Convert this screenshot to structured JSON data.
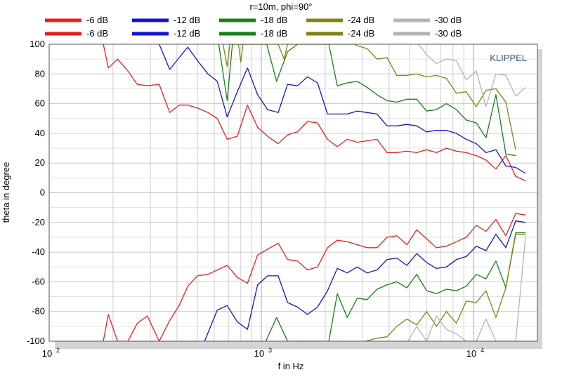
{
  "chart_data": {
    "type": "line",
    "title": "r=10m, phi=90°",
    "xlabel": "f in Hz",
    "ylabel": "theta in degree",
    "watermark": "KLIPPEL",
    "x_scale": "log",
    "xlim": [
      100,
      20000
    ],
    "ylim": [
      -100,
      100
    ],
    "x_ticks": [
      {
        "value": 100,
        "base": "10",
        "exp": "2"
      },
      {
        "value": 1000,
        "base": "10",
        "exp": "3"
      },
      {
        "value": 10000,
        "base": "10",
        "exp": "4"
      }
    ],
    "y_ticks": [
      "100",
      "80",
      "60",
      "40",
      "20",
      "0",
      "-20",
      "-40",
      "-60",
      "-80",
      "-100"
    ],
    "legend": [
      {
        "label": "-6 dB",
        "color": "#e8201c"
      },
      {
        "label": "-6 dB",
        "color": "#e8201c"
      },
      {
        "label": "-12 dB",
        "color": "#1414d2"
      },
      {
        "label": "-12 dB",
        "color": "#1414d2"
      },
      {
        "label": "-18 dB",
        "color": "#148214"
      },
      {
        "label": "-18 dB",
        "color": "#148214"
      },
      {
        "label": "-24 dB",
        "color": "#828214"
      },
      {
        "label": "-24 dB",
        "color": "#828214"
      },
      {
        "label": "-30 dB",
        "color": "#b4b4b4"
      },
      {
        "label": "-30 dB",
        "color": "#b4b4b4"
      }
    ],
    "series": [
      {
        "name": "-6 dB upper",
        "color": "#e8201c",
        "points": [
          [
            180,
            100
          ],
          [
            190,
            84
          ],
          [
            210,
            90
          ],
          [
            235,
            82
          ],
          [
            260,
            73
          ],
          [
            290,
            72
          ],
          [
            330,
            73
          ],
          [
            370,
            54
          ],
          [
            410,
            59
          ],
          [
            450,
            59
          ],
          [
            500,
            57
          ],
          [
            560,
            54
          ],
          [
            620,
            50
          ],
          [
            690,
            36
          ],
          [
            770,
            38
          ],
          [
            860,
            59
          ],
          [
            960,
            44
          ],
          [
            1070,
            38
          ],
          [
            1200,
            33
          ],
          [
            1330,
            39
          ],
          [
            1480,
            41
          ],
          [
            1650,
            48
          ],
          [
            1840,
            47
          ],
          [
            2050,
            36
          ],
          [
            2280,
            31
          ],
          [
            2540,
            36
          ],
          [
            2830,
            34
          ],
          [
            3150,
            35
          ],
          [
            3510,
            36
          ],
          [
            3910,
            27
          ],
          [
            4350,
            27
          ],
          [
            4850,
            28
          ],
          [
            5400,
            27
          ],
          [
            6010,
            29
          ],
          [
            6690,
            27
          ],
          [
            7450,
            30
          ],
          [
            8300,
            28
          ],
          [
            9240,
            27
          ],
          [
            10300,
            25
          ],
          [
            11450,
            22
          ],
          [
            12750,
            16
          ],
          [
            14200,
            25
          ],
          [
            15800,
            11
          ],
          [
            17600,
            8
          ]
        ]
      },
      {
        "name": "-6 dB lower",
        "color": "#e8201c",
        "points": [
          [
            180,
            -100
          ],
          [
            190,
            -82
          ],
          [
            210,
            -100
          ],
          [
            235,
            -100
          ],
          [
            260,
            -88
          ],
          [
            290,
            -83
          ],
          [
            330,
            -100
          ],
          [
            370,
            -86
          ],
          [
            410,
            -76
          ],
          [
            450,
            -63
          ],
          [
            500,
            -56
          ],
          [
            560,
            -55
          ],
          [
            620,
            -52
          ],
          [
            690,
            -49
          ],
          [
            770,
            -57
          ],
          [
            860,
            -61
          ],
          [
            960,
            -42
          ],
          [
            1070,
            -38
          ],
          [
            1200,
            -34
          ],
          [
            1330,
            -45
          ],
          [
            1480,
            -46
          ],
          [
            1650,
            -52
          ],
          [
            1840,
            -50
          ],
          [
            2050,
            -37
          ],
          [
            2280,
            -32
          ],
          [
            2540,
            -33
          ],
          [
            2830,
            -35
          ],
          [
            3150,
            -37
          ],
          [
            3510,
            -37
          ],
          [
            3910,
            -30
          ],
          [
            4350,
            -29
          ],
          [
            4850,
            -35
          ],
          [
            5400,
            -25
          ],
          [
            6010,
            -31
          ],
          [
            6690,
            -37
          ],
          [
            7450,
            -36
          ],
          [
            8300,
            -33
          ],
          [
            9240,
            -30
          ],
          [
            10300,
            -22
          ],
          [
            11450,
            -26
          ],
          [
            12750,
            -18
          ],
          [
            14200,
            -29
          ],
          [
            15800,
            -14
          ],
          [
            17600,
            -15
          ]
        ]
      },
      {
        "name": "-12 dB upper",
        "color": "#1414d2",
        "points": [
          [
            330,
            100
          ],
          [
            370,
            83
          ],
          [
            410,
            91
          ],
          [
            450,
            98
          ],
          [
            500,
            89
          ],
          [
            560,
            80
          ],
          [
            620,
            75
          ],
          [
            690,
            51
          ],
          [
            770,
            68
          ],
          [
            860,
            84
          ],
          [
            960,
            66
          ],
          [
            1070,
            56
          ],
          [
            1200,
            54
          ],
          [
            1330,
            73
          ],
          [
            1480,
            72
          ],
          [
            1650,
            78
          ],
          [
            1840,
            74
          ],
          [
            2050,
            53
          ],
          [
            2280,
            53
          ],
          [
            2540,
            53
          ],
          [
            2830,
            55
          ],
          [
            3150,
            54
          ],
          [
            3510,
            53
          ],
          [
            3910,
            45
          ],
          [
            4350,
            45
          ],
          [
            4850,
            46
          ],
          [
            5400,
            45
          ],
          [
            6010,
            41
          ],
          [
            6690,
            42
          ],
          [
            7450,
            42
          ],
          [
            8300,
            40
          ],
          [
            9240,
            36
          ],
          [
            10300,
            33
          ],
          [
            11450,
            27
          ],
          [
            12750,
            29
          ],
          [
            14200,
            18
          ],
          [
            15800,
            17
          ],
          [
            17600,
            13
          ]
        ]
      },
      {
        "name": "-12 dB lower",
        "color": "#1414d2",
        "points": [
          [
            540,
            -100
          ],
          [
            620,
            -79
          ],
          [
            690,
            -76
          ],
          [
            770,
            -87
          ],
          [
            860,
            -92
          ],
          [
            960,
            -62
          ],
          [
            1070,
            -56
          ],
          [
            1200,
            -56
          ],
          [
            1330,
            -74
          ],
          [
            1480,
            -77
          ],
          [
            1650,
            -82
          ],
          [
            1840,
            -77
          ],
          [
            2050,
            -66
          ],
          [
            2280,
            -51
          ],
          [
            2540,
            -54
          ],
          [
            2830,
            -50
          ],
          [
            3150,
            -54
          ],
          [
            3510,
            -52
          ],
          [
            3910,
            -45
          ],
          [
            4350,
            -44
          ],
          [
            4850,
            -49
          ],
          [
            5400,
            -41
          ],
          [
            6010,
            -47
          ],
          [
            6690,
            -51
          ],
          [
            7450,
            -50
          ],
          [
            8300,
            -45
          ],
          [
            9240,
            -43
          ],
          [
            10300,
            -36
          ],
          [
            11450,
            -39
          ],
          [
            12750,
            -28
          ],
          [
            14200,
            -37
          ],
          [
            15800,
            -19
          ],
          [
            17600,
            -20
          ]
        ]
      },
      {
        "name": "-18 dB upper",
        "color": "#148214",
        "points": [
          [
            630,
            100
          ],
          [
            690,
            62
          ],
          [
            730,
            100
          ],
          [
            1060,
            100
          ],
          [
            1180,
            75
          ],
          [
            1330,
            95
          ],
          [
            1480,
            100
          ],
          [
            2080,
            100
          ],
          [
            2280,
            72
          ],
          [
            2540,
            74
          ],
          [
            2830,
            75
          ],
          [
            3150,
            71
          ],
          [
            3510,
            66
          ],
          [
            3910,
            62
          ],
          [
            4350,
            61
          ],
          [
            4850,
            63
          ],
          [
            5400,
            63
          ],
          [
            6010,
            55
          ],
          [
            6690,
            56
          ],
          [
            7450,
            60
          ],
          [
            8300,
            56
          ],
          [
            9240,
            49
          ],
          [
            10300,
            47
          ],
          [
            11450,
            37
          ],
          [
            12750,
            66
          ],
          [
            14200,
            26
          ],
          [
            15800,
            25
          ]
        ]
      },
      {
        "name": "-18 dB lower",
        "color": "#148214",
        "points": [
          [
            1050,
            -100
          ],
          [
            1180,
            -84
          ],
          [
            1330,
            -100
          ],
          [
            2080,
            -100
          ],
          [
            2280,
            -68
          ],
          [
            2540,
            -84
          ],
          [
            2830,
            -71
          ],
          [
            3150,
            -72
          ],
          [
            3510,
            -65
          ],
          [
            3910,
            -62
          ],
          [
            4350,
            -60
          ],
          [
            4850,
            -64
          ],
          [
            5400,
            -55
          ],
          [
            6010,
            -66
          ],
          [
            6690,
            -68
          ],
          [
            7450,
            -65
          ],
          [
            8300,
            -66
          ],
          [
            9240,
            -63
          ],
          [
            10300,
            -55
          ],
          [
            11450,
            -58
          ],
          [
            12750,
            -46
          ],
          [
            14200,
            -64
          ],
          [
            15800,
            -27
          ],
          [
            17600,
            -27
          ]
        ]
      },
      {
        "name": "-24 dB upper",
        "color": "#828214",
        "points": [
          [
            660,
            100
          ],
          [
            690,
            85
          ],
          [
            710,
            100
          ],
          [
            780,
            100
          ],
          [
            800,
            88
          ],
          [
            820,
            100
          ],
          [
            1200,
            100
          ],
          [
            1280,
            90
          ],
          [
            1330,
            100
          ],
          [
            2750,
            100
          ],
          [
            2830,
            99
          ],
          [
            3150,
            97
          ],
          [
            3510,
            90
          ],
          [
            3910,
            91
          ],
          [
            4350,
            79
          ],
          [
            4850,
            79
          ],
          [
            5400,
            80
          ],
          [
            6010,
            78
          ],
          [
            6690,
            79
          ],
          [
            7450,
            77
          ],
          [
            8300,
            67
          ],
          [
            9240,
            68
          ],
          [
            10300,
            58
          ],
          [
            11450,
            69
          ],
          [
            12750,
            70
          ],
          [
            14200,
            61
          ],
          [
            15800,
            29
          ]
        ]
      },
      {
        "name": "-24 dB lower",
        "color": "#828214",
        "points": [
          [
            3100,
            -100
          ],
          [
            3510,
            -98
          ],
          [
            3910,
            -97
          ],
          [
            4350,
            -90
          ],
          [
            4850,
            -85
          ],
          [
            5400,
            -89
          ],
          [
            6010,
            -80
          ],
          [
            6690,
            -90
          ],
          [
            7450,
            -80
          ],
          [
            8300,
            -88
          ],
          [
            9240,
            -73
          ],
          [
            10300,
            -74
          ],
          [
            11450,
            -66
          ],
          [
            12750,
            -84
          ],
          [
            14200,
            -64
          ],
          [
            15800,
            -28
          ],
          [
            17600,
            -28
          ]
        ]
      },
      {
        "name": "-30 dB upper",
        "color": "#b4b4b4",
        "points": [
          [
            5500,
            100
          ],
          [
            6010,
            93
          ],
          [
            6690,
            87
          ],
          [
            7450,
            90
          ],
          [
            8300,
            89
          ],
          [
            9240,
            76
          ],
          [
            10300,
            82
          ],
          [
            11450,
            58
          ],
          [
            12750,
            80
          ],
          [
            14200,
            79
          ],
          [
            15800,
            65
          ],
          [
            17600,
            71
          ]
        ]
      },
      {
        "name": "-30 dB lower",
        "color": "#b4b4b4",
        "points": [
          [
            4900,
            -100
          ],
          [
            5400,
            -90
          ],
          [
            6010,
            -100
          ],
          [
            6690,
            -83
          ],
          [
            7450,
            -92
          ],
          [
            8300,
            -95
          ],
          [
            9240,
            -100
          ],
          [
            10300,
            -100
          ],
          [
            11450,
            -85
          ],
          [
            12750,
            -100
          ],
          [
            14200,
            -100
          ],
          [
            15800,
            -100
          ],
          [
            17600,
            -29
          ]
        ]
      }
    ]
  }
}
